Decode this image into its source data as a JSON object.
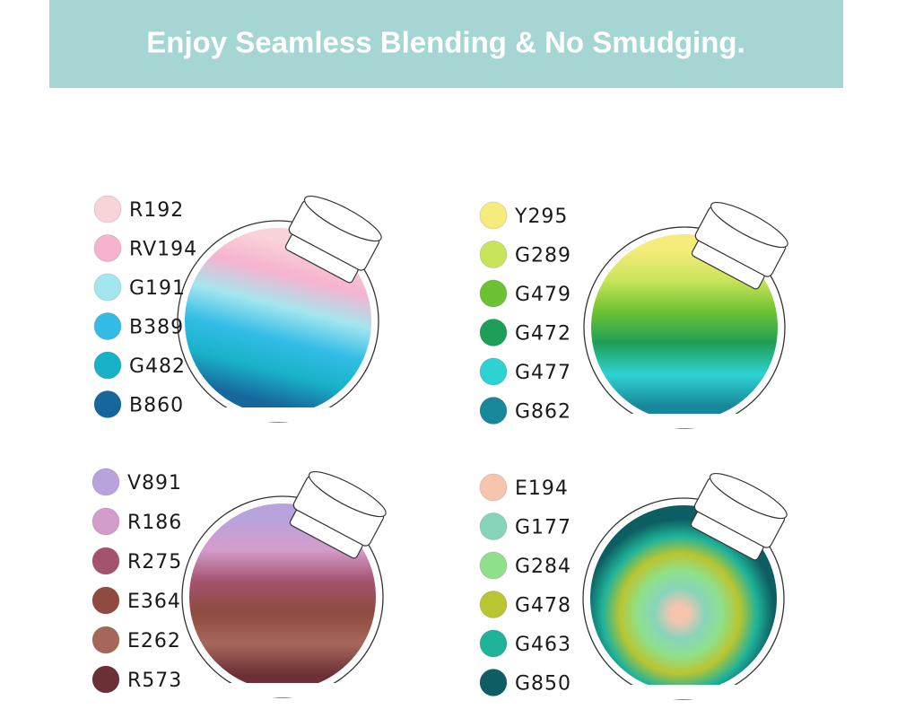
{
  "header": {
    "title": "Enjoy Seamless Blending & No Smudging."
  },
  "groups": [
    {
      "swatches": [
        {
          "code": "R192",
          "color": "#f8d4d8"
        },
        {
          "code": "RV194",
          "color": "#f6b3cf"
        },
        {
          "code": "G191",
          "color": "#a3e6ee"
        },
        {
          "code": "B389",
          "color": "#33bde6"
        },
        {
          "code": "G482",
          "color": "#18b2c8"
        },
        {
          "code": "B860",
          "color": "#17669c"
        }
      ]
    },
    {
      "swatches": [
        {
          "code": "Y295",
          "color": "#f6ec7c"
        },
        {
          "code": "G289",
          "color": "#c8e45a"
        },
        {
          "code": "G479",
          "color": "#6cc232"
        },
        {
          "code": "G472",
          "color": "#1e9f58"
        },
        {
          "code": "G477",
          "color": "#2fd2d3"
        },
        {
          "code": "G862",
          "color": "#17889a"
        }
      ]
    },
    {
      "swatches": [
        {
          "code": "V891",
          "color": "#b8a3dc"
        },
        {
          "code": "R186",
          "color": "#d49ccb"
        },
        {
          "code": "R275",
          "color": "#a4536f"
        },
        {
          "code": "E364",
          "color": "#8f4b3f"
        },
        {
          "code": "E262",
          "color": "#a6675b"
        },
        {
          "code": "R573",
          "color": "#6b2f36"
        }
      ]
    },
    {
      "swatches": [
        {
          "code": "E194",
          "color": "#f7c5ad"
        },
        {
          "code": "G177",
          "color": "#88d4bb"
        },
        {
          "code": "G284",
          "color": "#8fe08a"
        },
        {
          "code": "G478",
          "color": "#b9c531"
        },
        {
          "code": "G463",
          "color": "#1fb39a"
        },
        {
          "code": "G850",
          "color": "#0d5e62"
        }
      ]
    }
  ]
}
